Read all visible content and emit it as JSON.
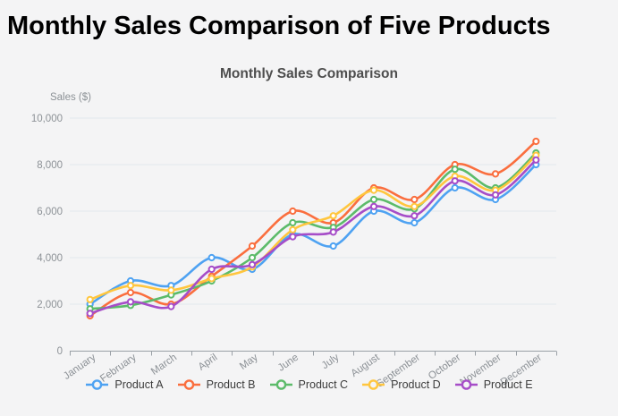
{
  "page": {
    "heading": "Monthly Sales Comparison of Five Products"
  },
  "chart_data": {
    "type": "line",
    "title": "Monthly Sales Comparison",
    "y_axis_name": "Sales ($)",
    "categories": [
      "January",
      "February",
      "March",
      "April",
      "May",
      "June",
      "July",
      "August",
      "September",
      "October",
      "November",
      "December"
    ],
    "series": [
      {
        "name": "Product A",
        "color": "#4ea2f2",
        "values": [
          2000,
          3000,
          2800,
          4000,
          3500,
          5000,
          4500,
          6000,
          5500,
          7000,
          6500,
          8000
        ]
      },
      {
        "name": "Product B",
        "color": "#fa6e3e",
        "values": [
          1500,
          2500,
          2000,
          3200,
          4500,
          6000,
          5500,
          7000,
          6500,
          8000,
          7600,
          9000
        ]
      },
      {
        "name": "Product C",
        "color": "#5cbb6a",
        "values": [
          1800,
          1950,
          2400,
          3000,
          4000,
          5500,
          5300,
          6500,
          6100,
          7800,
          7000,
          8500
        ]
      },
      {
        "name": "Product D",
        "color": "#ffc63e",
        "values": [
          2200,
          2800,
          2600,
          3100,
          3600,
          5200,
          5800,
          6900,
          6200,
          7500,
          6900,
          8400
        ]
      },
      {
        "name": "Product E",
        "color": "#a64dc8",
        "values": [
          1600,
          2100,
          1900,
          3500,
          3700,
          4900,
          5100,
          6200,
          5800,
          7300,
          6700,
          8200
        ]
      }
    ],
    "ylim": [
      0,
      10000
    ],
    "y_ticks": [
      "0",
      "2,000",
      "4,000",
      "6,000",
      "8,000",
      "10,000"
    ],
    "y_tick_step": 2000,
    "x_label_rotation": -35,
    "grid": true,
    "smooth": true,
    "marker": "empty-circle",
    "legend_position": "bottom"
  }
}
